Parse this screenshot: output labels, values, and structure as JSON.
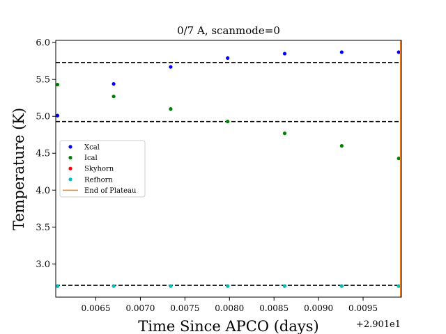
{
  "chart_data": {
    "type": "scatter",
    "title": "0/7 A, scanmode=0",
    "xlabel": "Time Since APCO (days)",
    "ylabel": "Temperature (K)",
    "x_offset_label": "+2.901e1",
    "xlim": [
      0.00605,
      0.00993
    ],
    "ylim": [
      2.55,
      6.03
    ],
    "xticks": [
      0.0065,
      0.007,
      0.0075,
      0.008,
      0.0085,
      0.009,
      0.0095
    ],
    "xtick_labels": [
      "0.0065",
      "0.0070",
      "0.0075",
      "0.0080",
      "0.0085",
      "0.0090",
      "0.0095"
    ],
    "yticks": [
      3.0,
      3.5,
      4.0,
      4.5,
      5.0,
      5.5,
      6.0
    ],
    "ytick_labels": [
      "3.0",
      "3.5",
      "4.0",
      "4.5",
      "5.0",
      "5.5",
      "6.0"
    ],
    "grid": false,
    "legend_position": "center-left",
    "series": [
      {
        "name": "Xcal",
        "color": "#0000ff",
        "marker": "dot",
        "x": [
          0.00607,
          0.0067,
          0.00734,
          0.00798,
          0.00862,
          0.00926,
          0.0099
        ],
        "y": [
          5.01,
          5.44,
          5.67,
          5.79,
          5.85,
          5.87,
          5.87
        ]
      },
      {
        "name": "Ical",
        "color": "#008000",
        "marker": "dot",
        "x": [
          0.00607,
          0.0067,
          0.00734,
          0.00798,
          0.00862,
          0.00926,
          0.0099
        ],
        "y": [
          5.43,
          5.27,
          5.1,
          4.93,
          4.77,
          4.6,
          4.43
        ]
      },
      {
        "name": "Skyhorn",
        "color": "#ff0000",
        "marker": "dot",
        "x": [
          0.00607,
          0.0067,
          0.00734,
          0.00798,
          0.00862,
          0.00926,
          0.0099
        ],
        "y": [
          2.7,
          2.7,
          2.7,
          2.7,
          2.7,
          2.7,
          2.7
        ]
      },
      {
        "name": "Refhorn",
        "color": "#00bfbf",
        "marker": "dot",
        "x": [
          0.00607,
          0.0067,
          0.00734,
          0.00798,
          0.00862,
          0.00926,
          0.0099
        ],
        "y": [
          2.7,
          2.7,
          2.7,
          2.7,
          2.7,
          2.7,
          2.7
        ]
      },
      {
        "name": "End of Plateau",
        "color": "#ff7f0e",
        "marker": "vline",
        "x_value": 0.00992
      }
    ],
    "hlines": [
      {
        "y": 5.73,
        "color": "#000000",
        "style": "dashed"
      },
      {
        "y": 4.93,
        "color": "#000000",
        "style": "dashed"
      },
      {
        "y": 2.71,
        "color": "#000000",
        "style": "dashed"
      }
    ]
  }
}
